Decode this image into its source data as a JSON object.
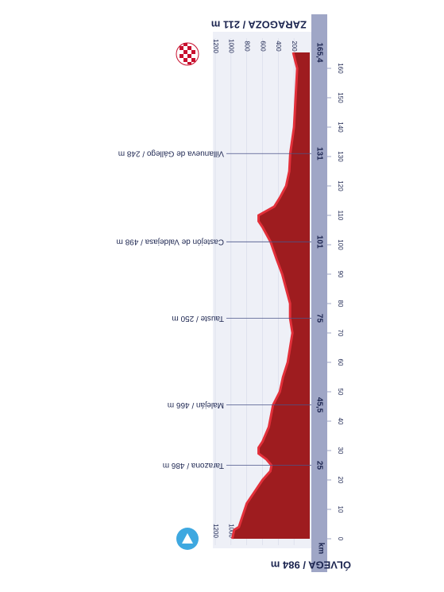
{
  "chart_data": {
    "type": "area",
    "start": "ÓLVEGA / 984 m",
    "finish": "ZARAGOZA / 211 m",
    "x_label": "km",
    "color": "#9e1c1f",
    "edge_color": "#e3303a",
    "x": [
      0,
      3,
      4,
      8,
      12,
      16,
      20,
      23,
      25,
      27,
      29,
      31,
      33,
      38,
      45.5,
      50,
      55,
      60,
      65,
      70,
      75,
      80,
      85,
      90,
      95,
      101,
      106,
      108,
      110,
      113,
      116,
      120,
      125,
      131,
      140,
      150,
      160,
      165.4
    ],
    "values": [
      984,
      960,
      900,
      850,
      800,
      700,
      600,
      500,
      486,
      550,
      650,
      650,
      600,
      520,
      466,
      380,
      340,
      280,
      250,
      220,
      250,
      250,
      300,
      350,
      420,
      498,
      600,
      650,
      650,
      450,
      380,
      300,
      260,
      248,
      200,
      180,
      160,
      211
    ],
    "xlim": [
      0,
      165.4
    ],
    "xticks": [
      0,
      10,
      20,
      30,
      40,
      50,
      60,
      70,
      80,
      90,
      100,
      110,
      120,
      130,
      140,
      150,
      160
    ],
    "ylim": [
      0,
      1200
    ],
    "yticks": [
      200,
      400,
      600,
      800,
      1000,
      1200
    ],
    "grid": true,
    "waypoints": [
      {
        "name": "Tarazona / 486 m",
        "km": 25
      },
      {
        "name": "Maleján / 466 m",
        "km": {
          "value": 45.5,
          "label": "45,5"
        }
      },
      {
        "name": "Tauste / 250 m",
        "km": 75
      },
      {
        "name": "Castejón de Valdejasa / 498 m",
        "km": 101
      },
      {
        "name": "Villanueva de Gállego / 248 m",
        "km": 131
      }
    ],
    "finish_km": {
      "value": 165.4,
      "label": "165,4"
    }
  }
}
